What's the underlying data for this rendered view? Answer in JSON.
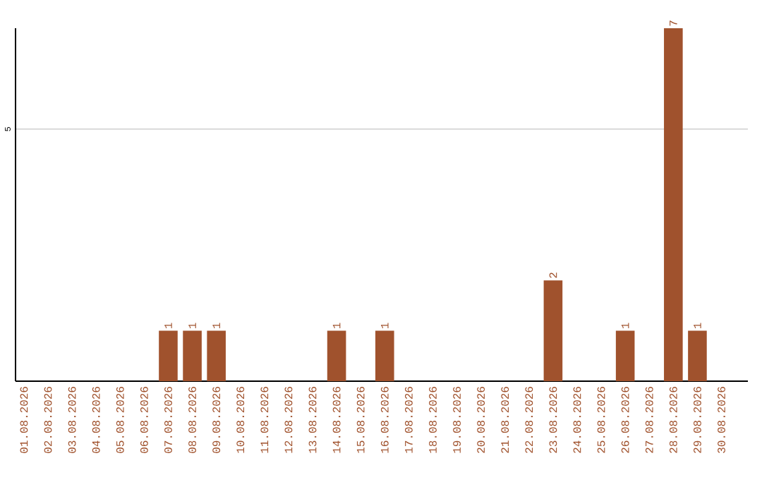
{
  "chart_data": {
    "type": "bar",
    "categories": [
      "01.08.2026",
      "02.08.2026",
      "03.08.2026",
      "04.08.2026",
      "05.08.2026",
      "06.08.2026",
      "07.08.2026",
      "08.08.2026",
      "09.08.2026",
      "10.08.2026",
      "11.08.2026",
      "12.08.2026",
      "13.08.2026",
      "14.08.2026",
      "15.08.2026",
      "16.08.2026",
      "17.08.2026",
      "18.08.2026",
      "19.08.2026",
      "20.08.2026",
      "21.08.2026",
      "22.08.2026",
      "23.08.2026",
      "24.08.2026",
      "25.08.2026",
      "26.08.2026",
      "27.08.2026",
      "28.08.2026",
      "29.08.2026",
      "30.08.2026"
    ],
    "values": [
      0,
      0,
      0,
      0,
      0,
      0,
      1,
      1,
      1,
      0,
      0,
      0,
      0,
      1,
      0,
      1,
      0,
      0,
      0,
      0,
      0,
      0,
      2,
      0,
      0,
      1,
      0,
      7,
      1,
      0
    ],
    "value_labels": [
      null,
      null,
      null,
      null,
      null,
      null,
      "1",
      "1",
      "1",
      null,
      null,
      null,
      null,
      "1",
      null,
      "1",
      null,
      null,
      null,
      null,
      null,
      null,
      "2",
      null,
      null,
      "1",
      null,
      "7",
      "1",
      null
    ],
    "color": "#a0522d",
    "ylim": [
      0,
      7
    ],
    "yticks": [
      5
    ],
    "grid": "y"
  }
}
